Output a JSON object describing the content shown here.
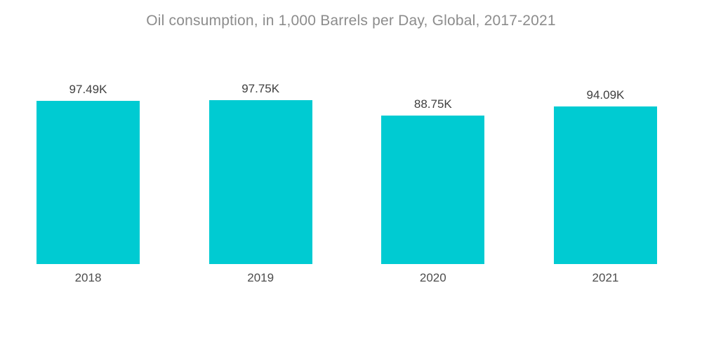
{
  "title": "Oil consumption, in 1,000 Barrels per Day, Global, 2017-2021",
  "colors": {
    "background": "#FFFFFF",
    "bar": "#00CBD2",
    "title_text": "#8C8C8C",
    "value_label_text": "#404040",
    "year_label_text": "#4D4D4D"
  },
  "chart_data": {
    "type": "bar",
    "title": "Oil consumption, in 1,000 Barrels per Day, Global, 2017-2021",
    "categories": [
      "2018",
      "2019",
      "2020",
      "2021"
    ],
    "values": [
      97.49,
      97.75,
      88.75,
      94.09
    ],
    "value_labels": [
      "97.49K",
      "97.75K",
      "88.75K",
      "94.09K"
    ],
    "value_unit": "K (1,000 Barrels per Day)",
    "xlabel": "",
    "ylabel": "",
    "ylim": [
      0,
      97.75
    ],
    "grid": false,
    "legend": false,
    "axes_visible": false,
    "data_labels_position": "above-bars",
    "category_labels_position": "below-bars"
  }
}
